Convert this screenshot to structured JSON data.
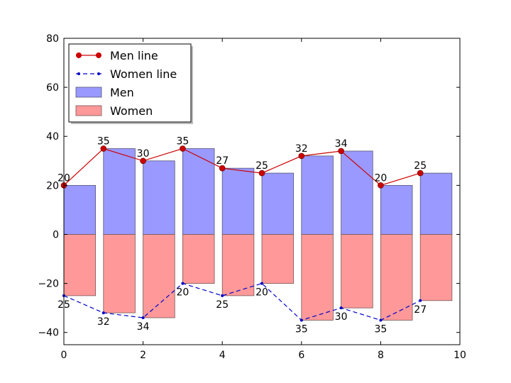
{
  "chart_data": {
    "type": "bar",
    "x": [
      0.4,
      1.4,
      2.4,
      3.4,
      4.4,
      5.4,
      6.4,
      7.4,
      8.4,
      9.4
    ],
    "series": [
      {
        "name": "Men",
        "kind": "bar",
        "values": [
          20,
          35,
          30,
          35,
          27,
          25,
          32,
          34,
          20,
          25
        ],
        "color": "#9999ff"
      },
      {
        "name": "Women",
        "kind": "bar",
        "values": [
          -25,
          -32,
          -34,
          -20,
          -25,
          -20,
          -35,
          -30,
          -35,
          -27
        ],
        "color": "#ff9999"
      },
      {
        "name": "Men line",
        "kind": "line",
        "values": [
          20,
          35,
          30,
          35,
          27,
          25,
          32,
          34,
          20,
          25
        ],
        "color": "#cc0000"
      },
      {
        "name": "Women line",
        "kind": "line",
        "values": [
          -25,
          -32,
          -34,
          -20,
          -25,
          -20,
          -35,
          -30,
          -35,
          -27
        ],
        "color": "#0000cc"
      }
    ],
    "men_labels": [
      "20",
      "35",
      "30",
      "35",
      "27",
      "25",
      "32",
      "34",
      "20",
      "25"
    ],
    "women_labels": [
      "25",
      "32",
      "34",
      "20",
      "25",
      "20",
      "35",
      "30",
      "35",
      "27"
    ],
    "xlim": [
      0,
      10
    ],
    "ylim": [
      -45,
      80
    ],
    "xticks": [
      0,
      2,
      4,
      6,
      8,
      10
    ],
    "yticks": [
      -40,
      -20,
      0,
      20,
      40,
      60,
      80
    ],
    "xtick_labels": [
      "0",
      "2",
      "4",
      "6",
      "8",
      "10"
    ],
    "ytick_labels": [
      "−40",
      "−20",
      "0",
      "20",
      "40",
      "60",
      "80"
    ],
    "title": "",
    "xlabel": "",
    "ylabel": "",
    "legend_position": "top-left",
    "grid": false
  }
}
